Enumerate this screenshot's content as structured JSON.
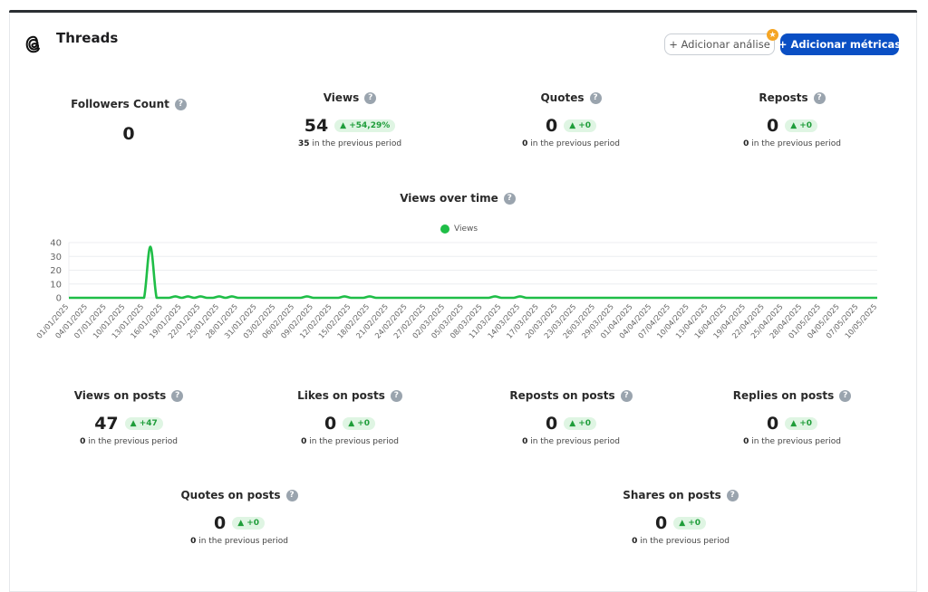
{
  "header": {
    "title": "Threads",
    "add_analysis_label": "+ Adicionar análise",
    "add_metrics_label": "+ Adicionar métricas"
  },
  "metrics_top": [
    {
      "title": "Followers Count",
      "value": "0",
      "badge": null,
      "prev": null
    },
    {
      "title": "Views",
      "value": "54",
      "badge": "▲ +54,29%",
      "prev_value": "35",
      "prev_text": " in the previous period"
    },
    {
      "title": "Quotes",
      "value": "0",
      "badge": "▲ +0",
      "prev_value": "0",
      "prev_text": " in the previous period"
    },
    {
      "title": "Reposts",
      "value": "0",
      "badge": "▲ +0",
      "prev_value": "0",
      "prev_text": " in the previous period"
    }
  ],
  "metrics_posts": [
    {
      "title": "Views on posts",
      "value": "47",
      "badge": "▲ +47",
      "prev_value": "0",
      "prev_text": " in the previous period"
    },
    {
      "title": "Likes on posts",
      "value": "0",
      "badge": "▲ +0",
      "prev_value": "0",
      "prev_text": " in the previous period"
    },
    {
      "title": "Reposts on posts",
      "value": "0",
      "badge": "▲ +0",
      "prev_value": "0",
      "prev_text": " in the previous period"
    },
    {
      "title": "Replies on posts",
      "value": "0",
      "badge": "▲ +0",
      "prev_value": "0",
      "prev_text": " in the previous period"
    },
    {
      "title": "Quotes on posts",
      "value": "0",
      "badge": "▲ +0",
      "prev_value": "0",
      "prev_text": " in the previous period"
    },
    {
      "title": "Shares on posts",
      "value": "0",
      "badge": "▲ +0",
      "prev_value": "0",
      "prev_text": " in the previous period"
    }
  ],
  "help_glyph": "?",
  "colors": {
    "accent": "#0a4fc4",
    "line": "#1fbe47",
    "badge_bg": "#dff5e3",
    "badge_text": "#1f9d3a"
  },
  "chart_data": {
    "type": "line",
    "title": "Views over time",
    "legend": [
      "Views"
    ],
    "legend_position": "top-center",
    "ylim": [
      0,
      40
    ],
    "y_ticks": [
      "0",
      "10",
      "20",
      "30",
      "40"
    ],
    "x_tick_labels": [
      "01/01/2025",
      "04/01/2025",
      "07/01/2025",
      "10/01/2025",
      "13/01/2025",
      "16/01/2025",
      "19/01/2025",
      "22/01/2025",
      "25/01/2025",
      "28/01/2025",
      "31/01/2025",
      "03/02/2025",
      "06/02/2025",
      "09/02/2025",
      "12/02/2025",
      "15/02/2025",
      "18/02/2025",
      "21/02/2025",
      "24/02/2025",
      "27/02/2025",
      "02/03/2025",
      "05/03/2025",
      "08/03/2025",
      "11/03/2025",
      "14/03/2025",
      "17/03/2025",
      "20/03/2025",
      "23/03/2025",
      "26/03/2025",
      "29/03/2025",
      "01/04/2025",
      "04/04/2025",
      "07/04/2025",
      "10/04/2025",
      "13/04/2025",
      "16/04/2025",
      "19/04/2025",
      "22/04/2025",
      "25/04/2025",
      "28/04/2025",
      "01/05/2025",
      "04/05/2025",
      "07/05/2025",
      "10/05/2025"
    ],
    "series": [
      {
        "name": "Views",
        "values": [
          0,
          0,
          0,
          0,
          0,
          0,
          0,
          0,
          0,
          0,
          0,
          0,
          0,
          37,
          0,
          0,
          0,
          1,
          0,
          1,
          0,
          1,
          0,
          0,
          1,
          0,
          1,
          0,
          0,
          0,
          0,
          0,
          0,
          0,
          0,
          0,
          0,
          0,
          1,
          0,
          0,
          0,
          0,
          0,
          1,
          0,
          0,
          0,
          1,
          0,
          0,
          0,
          0,
          0,
          0,
          0,
          0,
          0,
          0,
          0,
          0,
          0,
          0,
          0,
          0,
          0,
          0,
          0,
          1,
          0,
          0,
          0,
          1,
          0,
          0,
          0,
          0,
          0,
          0,
          0,
          0,
          0,
          0,
          0,
          0,
          0,
          0,
          0,
          0,
          0,
          0,
          0,
          0,
          0,
          0,
          0,
          0,
          0,
          0,
          0,
          0,
          0,
          0,
          0,
          0,
          0,
          0,
          0,
          0,
          0,
          0,
          0,
          0,
          0,
          0,
          0,
          0,
          0,
          0,
          0,
          0,
          0,
          0,
          0,
          0,
          0,
          0,
          0,
          0,
          0
        ]
      }
    ],
    "grid": true
  }
}
